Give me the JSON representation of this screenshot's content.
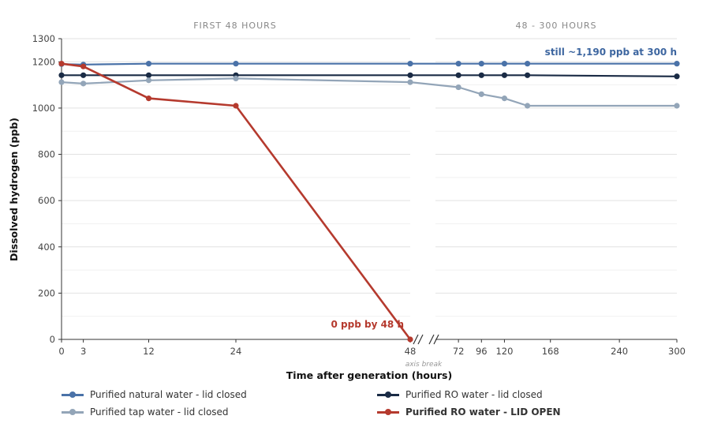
{
  "chart_data": {
    "type": "line",
    "panels": [
      {
        "title": "FIRST 48 HOURS",
        "xlim": [
          0,
          48
        ],
        "ticks": [
          0,
          3,
          12,
          24,
          48
        ]
      },
      {
        "title": "48 - 300 HOURS",
        "xlim": [
          48,
          300
        ],
        "ticks": [
          72,
          96,
          120,
          168,
          240,
          300
        ]
      }
    ],
    "xlabel": "Time after generation (hours)",
    "ylabel": "Dissolved hydrogen (ppb)",
    "ylim": [
      0,
      1300
    ],
    "yticks": [
      0,
      200,
      400,
      600,
      800,
      1000,
      1200,
      1300
    ],
    "axis_break_label": "axis break",
    "grid": true,
    "legend_position": "bottom",
    "series": [
      {
        "name": "Purified natural water - lid closed",
        "color": "#4a72a8",
        "bold": false,
        "x": [
          0,
          3,
          12,
          24,
          48,
          72,
          96,
          120,
          144,
          300
        ],
        "y": [
          1190,
          1188,
          1192,
          1192,
          1192,
          1192,
          1192,
          1192,
          1192,
          1192
        ]
      },
      {
        "name": "Purified RO water - lid closed",
        "color": "#1a2b45",
        "bold": false,
        "x": [
          0,
          3,
          12,
          24,
          48,
          72,
          96,
          120,
          144,
          300
        ],
        "y": [
          1142,
          1142,
          1142,
          1142,
          1142,
          1142,
          1142,
          1142,
          1142,
          1137
        ]
      },
      {
        "name": "Purified tap water - lid closed",
        "color": "#93a5b8",
        "bold": false,
        "x": [
          0,
          3,
          12,
          24,
          48,
          72,
          96,
          120,
          144,
          300
        ],
        "y": [
          1112,
          1106,
          1120,
          1128,
          1112,
          1090,
          1060,
          1042,
          1010,
          1010
        ]
      },
      {
        "name": "Purified RO water - LID OPEN",
        "color": "#b53a2e",
        "bold": true,
        "x": [
          0,
          3,
          12,
          24,
          48
        ],
        "y": [
          1192,
          1180,
          1042,
          1010,
          0
        ]
      }
    ],
    "annotations": [
      {
        "text": "still ~1,190 ppb at 300 h",
        "color": "#3d66a0"
      },
      {
        "text": "0 ppb by 48 h",
        "color": "#b53a2e"
      }
    ]
  }
}
